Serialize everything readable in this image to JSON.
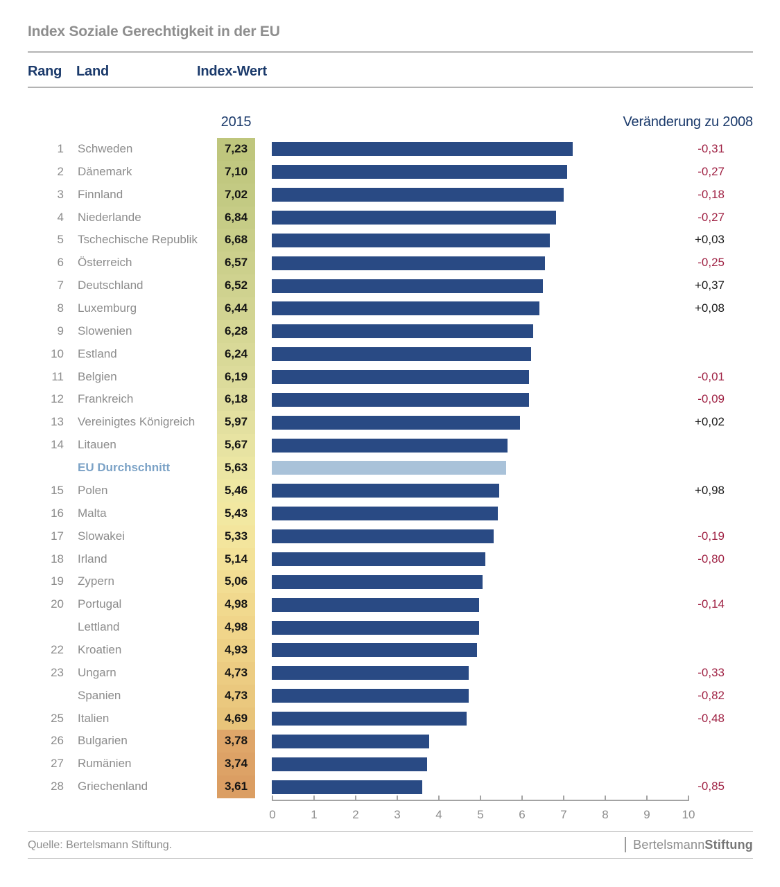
{
  "title": "Index Soziale Gerechtigkeit in der EU",
  "table": {
    "col_rang": "Rang",
    "col_land": "Land",
    "col_index": "Index-Wert",
    "col_year": "2015",
    "col_change": "Veränderung zu 2008"
  },
  "source": "Quelle: Bertelsmann Stiftung.",
  "logo": {
    "light": "Bertelsmann",
    "bold": "Stiftung"
  },
  "colors": {
    "title": "#8e8e8e",
    "header": "#1b3a6b",
    "label": "#8c8c8c",
    "avg_label": "#7ba2c6",
    "bar": "#294a84",
    "bar_average": "#a9c2d9",
    "change_negative": "#9f2143",
    "change_positive": "#1a1a1a",
    "rule": "#b3b3b3",
    "axis": "#a3a3a3",
    "axis_text": "#8c8c8c",
    "footer_text": "#8c8c8c"
  },
  "chart_data": {
    "type": "bar",
    "orientation": "horizontal",
    "title": "Index Soziale Gerechtigkeit in der EU",
    "value_column_header": "2015",
    "change_column_header": "Veränderung zu 2008",
    "x_axis": {
      "min": 0,
      "max": 10,
      "ticks": [
        "0",
        "1",
        "2",
        "3",
        "4",
        "5",
        "6",
        "7",
        "8",
        "9",
        "10"
      ]
    },
    "rows": [
      {
        "rank": "1",
        "country": "Schweden",
        "value": 7.23,
        "label": "7,23",
        "change": "-0,31",
        "cell": "#bfc67d",
        "average": false
      },
      {
        "rank": "2",
        "country": "Dänemark",
        "value": 7.1,
        "label": "7,10",
        "change": "-0,27",
        "cell": "#c1c880",
        "average": false
      },
      {
        "rank": "3",
        "country": "Finnland",
        "value": 7.02,
        "label": "7,02",
        "change": "-0,18",
        "cell": "#c3ca83",
        "average": false
      },
      {
        "rank": "4",
        "country": "Niederlande",
        "value": 6.84,
        "label": "6,84",
        "change": "-0,27",
        "cell": "#c6cc86",
        "average": false
      },
      {
        "rank": "5",
        "country": "Tschechische Republik",
        "value": 6.68,
        "label": "6,68",
        "change": "+0,03",
        "cell": "#c9ce89",
        "average": false
      },
      {
        "rank": "6",
        "country": "Österreich",
        "value": 6.57,
        "label": "6,57",
        "change": "-0,25",
        "cell": "#ccd08c",
        "average": false
      },
      {
        "rank": "7",
        "country": "Deutschland",
        "value": 6.52,
        "label": "6,52",
        "change": "+0,37",
        "cell": "#cfd28f",
        "average": false
      },
      {
        "rank": "8",
        "country": "Luxemburg",
        "value": 6.44,
        "label": "6,44",
        "change": "+0,08",
        "cell": "#d2d492",
        "average": false
      },
      {
        "rank": "9",
        "country": "Slowenien",
        "value": 6.28,
        "label": "6,28",
        "change": "",
        "cell": "#d6d795",
        "average": false
      },
      {
        "rank": "10",
        "country": "Estland",
        "value": 6.24,
        "label": "6,24",
        "change": "",
        "cell": "#d9d998",
        "average": false
      },
      {
        "rank": "11",
        "country": "Belgien",
        "value": 6.19,
        "label": "6,19",
        "change": "-0,01",
        "cell": "#dcdb9b",
        "average": false
      },
      {
        "rank": "12",
        "country": "Frankreich",
        "value": 6.18,
        "label": "6,18",
        "change": "-0,09",
        "cell": "#dfdd9e",
        "average": false
      },
      {
        "rank": "13",
        "country": "Vereinigtes Königreich",
        "value": 5.97,
        "label": "5,97",
        "change": "+0,02",
        "cell": "#e3e0a0",
        "average": false
      },
      {
        "rank": "14",
        "country": "Litauen",
        "value": 5.67,
        "label": "5,67",
        "change": "",
        "cell": "#e7e3a2",
        "average": false
      },
      {
        "rank": "",
        "country": "EU Durchschnitt",
        "value": 5.63,
        "label": "5,63",
        "change": "",
        "cell": "#ebe6a3",
        "average": true
      },
      {
        "rank": "15",
        "country": "Polen",
        "value": 5.46,
        "label": "5,46",
        "change": "+0,98",
        "cell": "#efe8a3",
        "average": false
      },
      {
        "rank": "16",
        "country": "Malta",
        "value": 5.43,
        "label": "5,43",
        "change": "",
        "cell": "#f2e8a1",
        "average": false
      },
      {
        "rank": "17",
        "country": "Slowakei",
        "value": 5.33,
        "label": "5,33",
        "change": "-0,19",
        "cell": "#f3e59d",
        "average": false
      },
      {
        "rank": "18",
        "country": "Irland",
        "value": 5.14,
        "label": "5,14",
        "change": "-0,80",
        "cell": "#f3e298",
        "average": false
      },
      {
        "rank": "19",
        "country": "Zypern",
        "value": 5.06,
        "label": "5,06",
        "change": "",
        "cell": "#f2dd93",
        "average": false
      },
      {
        "rank": "20",
        "country": "Portugal",
        "value": 4.98,
        "label": "4,98",
        "change": "-0,14",
        "cell": "#f1d98e",
        "average": false
      },
      {
        "rank": "",
        "country": "Lettland",
        "value": 4.98,
        "label": "4,98",
        "change": "",
        "cell": "#f0d58a",
        "average": false
      },
      {
        "rank": "22",
        "country": "Kroatien",
        "value": 4.93,
        "label": "4,93",
        "change": "",
        "cell": "#eed186",
        "average": false
      },
      {
        "rank": "23",
        "country": "Ungarn",
        "value": 4.73,
        "label": "4,73",
        "change": "-0,33",
        "cell": "#eccc82",
        "average": false
      },
      {
        "rank": "",
        "country": "Spanien",
        "value": 4.73,
        "label": "4,73",
        "change": "-0,82",
        "cell": "#eac87e",
        "average": false
      },
      {
        "rank": "25",
        "country": "Italien",
        "value": 4.69,
        "label": "4,69",
        "change": "-0,48",
        "cell": "#e8c47a",
        "average": false
      },
      {
        "rank": "26",
        "country": "Bulgarien",
        "value": 3.78,
        "label": "3,78",
        "change": "",
        "cell": "#dfa669",
        "average": false
      },
      {
        "rank": "27",
        "country": "Rumänien",
        "value": 3.74,
        "label": "3,74",
        "change": "",
        "cell": "#dda266",
        "average": false
      },
      {
        "rank": "28",
        "country": "Griechenland",
        "value": 3.61,
        "label": "3,61",
        "change": "-0,85",
        "cell": "#db9e63",
        "average": false
      }
    ]
  }
}
